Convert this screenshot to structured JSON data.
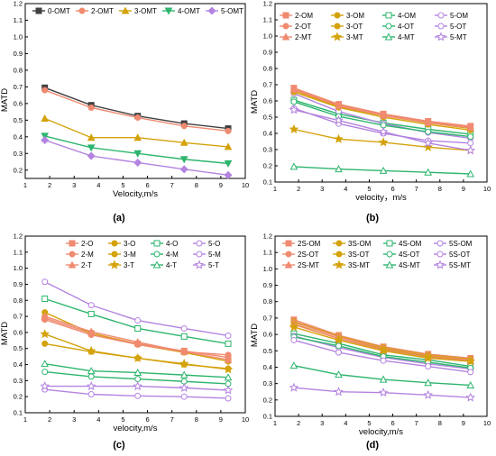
{
  "chart_data": [
    {
      "panel_label": "(a)",
      "type": "line",
      "xlabel": "Velocity,m/s",
      "ylabel": "MATD",
      "xlim": [
        1,
        10
      ],
      "ylim": [
        0.15,
        1.2
      ],
      "xticks": [
        "1",
        "2",
        "3",
        "4",
        "5",
        "6",
        "7",
        "8",
        "9",
        "10"
      ],
      "yticks": [
        "0.2",
        "0.3",
        "0.4",
        "0.5",
        "0.6",
        "0.7",
        "0.8",
        "0.9",
        "1.0",
        "1.1",
        "1.2"
      ],
      "x": [
        1.8,
        3.7,
        5.6,
        7.5,
        9.3
      ],
      "legend_position": "top",
      "series": [
        {
          "name": "0-OMT",
          "color": "#404040",
          "marker": "square",
          "values": [
            0.695,
            0.59,
            0.525,
            0.48,
            0.45
          ]
        },
        {
          "name": "2-OMT",
          "color": "#f08a70",
          "marker": "circle",
          "values": [
            0.68,
            0.575,
            0.515,
            0.465,
            0.435
          ]
        },
        {
          "name": "3-OMT",
          "color": "#d4a20b",
          "marker": "triangle",
          "values": [
            0.51,
            0.395,
            0.395,
            0.365,
            0.34
          ]
        },
        {
          "name": "4-OMT",
          "color": "#2db56d",
          "marker": "triangle-down",
          "values": [
            0.405,
            0.335,
            0.3,
            0.265,
            0.24
          ]
        },
        {
          "name": "5-OMT",
          "color": "#b483e0",
          "marker": "diamond",
          "values": [
            0.38,
            0.285,
            0.245,
            0.205,
            0.17
          ]
        }
      ]
    },
    {
      "panel_label": "(b)",
      "type": "line",
      "xlabel": "velocity，m/s",
      "ylabel": "MATD",
      "xlim": [
        1,
        10
      ],
      "ylim": [
        0.1,
        1.2
      ],
      "xticks": [
        "1",
        "2",
        "3",
        "4",
        "5",
        "6",
        "7",
        "8",
        "9",
        "10"
      ],
      "yticks": [
        "0.1",
        "0.2",
        "0.3",
        "0.4",
        "0.5",
        "0.6",
        "0.7",
        "0.8",
        "0.9",
        "1.0",
        "1.1",
        "1.2"
      ],
      "x": [
        1.8,
        3.7,
        5.6,
        7.5,
        9.3
      ],
      "legend_position": "top",
      "series": [
        {
          "name": "2-OM",
          "color": "#f08a70",
          "marker": "square",
          "values": [
            0.68,
            0.58,
            0.52,
            0.475,
            0.445
          ]
        },
        {
          "name": "3-OM",
          "color": "#d4a20b",
          "marker": "circle",
          "values": [
            0.665,
            0.565,
            0.51,
            0.465,
            0.43
          ]
        },
        {
          "name": "4-OM",
          "color": "#2db56d",
          "marker": "square-open",
          "values": [
            0.605,
            0.52,
            0.465,
            0.425,
            0.395
          ]
        },
        {
          "name": "5-OM",
          "color": "#b483e0",
          "marker": "circle-open",
          "values": [
            0.645,
            0.535,
            0.46,
            0.405,
            0.37
          ]
        },
        {
          "name": "2-OT",
          "color": "#f08a70",
          "marker": "circle",
          "values": [
            0.675,
            0.575,
            0.515,
            0.47,
            0.44
          ]
        },
        {
          "name": "3-OT",
          "color": "#d4a20b",
          "marker": "circle",
          "values": [
            0.655,
            0.56,
            0.5,
            0.455,
            0.42
          ]
        },
        {
          "name": "4-OT",
          "color": "#2db56d",
          "marker": "circle-open",
          "values": [
            0.595,
            0.505,
            0.45,
            0.41,
            0.38
          ]
        },
        {
          "name": "5-OT",
          "color": "#b483e0",
          "marker": "circle-open",
          "values": [
            0.555,
            0.46,
            0.4,
            0.355,
            0.34
          ]
        },
        {
          "name": "2-MT",
          "color": "#f08a70",
          "marker": "triangle",
          "values": [
            0.67,
            0.57,
            0.51,
            0.465,
            0.435
          ]
        },
        {
          "name": "3-MT",
          "color": "#d4a20b",
          "marker": "star",
          "values": [
            0.425,
            0.365,
            0.345,
            0.315,
            0.295
          ]
        },
        {
          "name": "4-MT",
          "color": "#2db56d",
          "marker": "triangle-open",
          "values": [
            0.195,
            0.18,
            0.17,
            0.16,
            0.15
          ]
        },
        {
          "name": "5-MT",
          "color": "#b483e0",
          "marker": "star-open",
          "values": [
            0.545,
            0.48,
            0.41,
            0.34,
            0.295
          ]
        }
      ]
    },
    {
      "panel_label": "(c)",
      "type": "line",
      "xlabel": "velocity,m/s",
      "ylabel": "MATD",
      "xlim": [
        1,
        10
      ],
      "ylim": [
        0.1,
        1.2
      ],
      "xticks": [
        "1",
        "2",
        "3",
        "4",
        "5",
        "6",
        "7",
        "8",
        "9",
        "10"
      ],
      "yticks": [
        "0.1",
        "0.2",
        "0.3",
        "0.4",
        "0.5",
        "0.6",
        "0.7",
        "0.8",
        "0.9",
        "1.0",
        "1.1",
        "1.2"
      ],
      "x": [
        1.8,
        3.7,
        5.6,
        7.5,
        9.3
      ],
      "legend_position": "top",
      "series": [
        {
          "name": "2-O",
          "color": "#f08a70",
          "marker": "square",
          "values": [
            0.69,
            0.595,
            0.53,
            0.485,
            0.445
          ]
        },
        {
          "name": "3-O",
          "color": "#d4a20b",
          "marker": "circle",
          "values": [
            0.725,
            0.595,
            0.525,
            0.475,
            0.42
          ]
        },
        {
          "name": "4-O",
          "color": "#2db56d",
          "marker": "square-open",
          "values": [
            0.81,
            0.715,
            0.625,
            0.575,
            0.53
          ]
        },
        {
          "name": "5-O",
          "color": "#b483e0",
          "marker": "circle-open",
          "values": [
            0.915,
            0.77,
            0.675,
            0.625,
            0.58
          ]
        },
        {
          "name": "2-M",
          "color": "#f08a70",
          "marker": "circle",
          "values": [
            0.68,
            0.585,
            0.525,
            0.48,
            0.46
          ]
        },
        {
          "name": "3-M",
          "color": "#d4a20b",
          "marker": "circle",
          "values": [
            0.53,
            0.48,
            0.44,
            0.4,
            0.375
          ]
        },
        {
          "name": "4-M",
          "color": "#2db56d",
          "marker": "circle-open",
          "values": [
            0.355,
            0.325,
            0.31,
            0.295,
            0.28
          ]
        },
        {
          "name": "5-M",
          "color": "#b483e0",
          "marker": "circle-open",
          "values": [
            0.245,
            0.215,
            0.205,
            0.2,
            0.19
          ]
        },
        {
          "name": "2-T",
          "color": "#f08a70",
          "marker": "triangle",
          "values": [
            0.7,
            0.605,
            0.54,
            0.48,
            0.43
          ]
        },
        {
          "name": "3-T",
          "color": "#d4a20b",
          "marker": "star",
          "values": [
            0.59,
            0.485,
            0.44,
            0.405,
            0.37
          ]
        },
        {
          "name": "4-T",
          "color": "#2db56d",
          "marker": "triangle-open",
          "values": [
            0.405,
            0.36,
            0.35,
            0.335,
            0.32
          ]
        },
        {
          "name": "5-T",
          "color": "#b483e0",
          "marker": "star-open",
          "values": [
            0.265,
            0.265,
            0.265,
            0.255,
            0.24
          ]
        }
      ]
    },
    {
      "panel_label": "(d)",
      "type": "line",
      "xlabel": "velocity,m/s",
      "ylabel": "MATD",
      "xlim": [
        1,
        10
      ],
      "ylim": [
        0.1,
        1.2
      ],
      "xticks": [
        "1",
        "2",
        "3",
        "4",
        "5",
        "6",
        "7",
        "8",
        "9",
        "10"
      ],
      "yticks": [
        "0.1",
        "0.2",
        "0.3",
        "0.4",
        "0.5",
        "0.6",
        "0.7",
        "0.8",
        "0.9",
        "1.0",
        "1.1",
        "1.2"
      ],
      "x": [
        1.8,
        3.7,
        5.6,
        7.5,
        9.3
      ],
      "legend_position": "top",
      "series": [
        {
          "name": "2S-OM",
          "color": "#f08a70",
          "marker": "square",
          "values": [
            0.69,
            0.595,
            0.525,
            0.48,
            0.455
          ]
        },
        {
          "name": "3S-OM",
          "color": "#d4a20b",
          "marker": "circle",
          "values": [
            0.68,
            0.59,
            0.52,
            0.475,
            0.45
          ]
        },
        {
          "name": "4S-OM",
          "color": "#2db56d",
          "marker": "square-open",
          "values": [
            0.605,
            0.545,
            0.475,
            0.445,
            0.405
          ]
        },
        {
          "name": "5S-OM",
          "color": "#b483e0",
          "marker": "circle-open",
          "values": [
            0.59,
            0.52,
            0.46,
            0.42,
            0.39
          ]
        },
        {
          "name": "2S-OT",
          "color": "#f08a70",
          "marker": "circle",
          "values": [
            0.675,
            0.585,
            0.515,
            0.47,
            0.445
          ]
        },
        {
          "name": "3S-OT",
          "color": "#d4a20b",
          "marker": "circle",
          "values": [
            0.665,
            0.575,
            0.51,
            0.465,
            0.44
          ]
        },
        {
          "name": "4S-OT",
          "color": "#2db56d",
          "marker": "circle-open",
          "values": [
            0.585,
            0.53,
            0.465,
            0.43,
            0.395
          ]
        },
        {
          "name": "5S-OT",
          "color": "#b483e0",
          "marker": "circle-open",
          "values": [
            0.565,
            0.49,
            0.44,
            0.405,
            0.37
          ]
        },
        {
          "name": "2S-MT",
          "color": "#f08a70",
          "marker": "triangle",
          "values": [
            0.66,
            0.575,
            0.505,
            0.46,
            0.44
          ]
        },
        {
          "name": "3S-MT",
          "color": "#d4a20b",
          "marker": "star",
          "values": [
            0.645,
            0.565,
            0.5,
            0.455,
            0.435
          ]
        },
        {
          "name": "4S-MT",
          "color": "#2db56d",
          "marker": "triangle-open",
          "values": [
            0.41,
            0.355,
            0.325,
            0.305,
            0.29
          ]
        },
        {
          "name": "5S-MT",
          "color": "#b483e0",
          "marker": "star-open",
          "values": [
            0.275,
            0.25,
            0.245,
            0.23,
            0.215
          ]
        }
      ]
    }
  ]
}
